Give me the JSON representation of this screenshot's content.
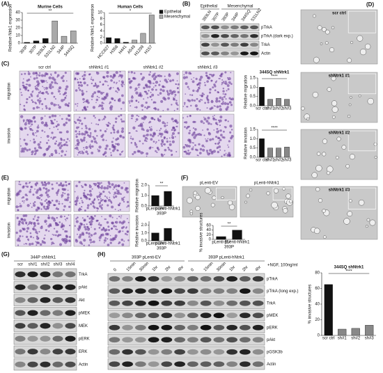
{
  "panel_labels": [
    "(A)",
    "(B)",
    "(C)",
    "(D)",
    "(E)",
    "(F)",
    "(G)",
    "(H)"
  ],
  "chart_data": [
    {
      "type": "bar",
      "title": "Murine Cells",
      "ylabel": "Relative Ntrk1 expression",
      "categories": [
        "393P",
        "307P",
        "393LN",
        "531LN2",
        "344P",
        "344SQ"
      ],
      "values": [
        1,
        3,
        6,
        29,
        9,
        16
      ],
      "colors": [
        "#111111",
        "#111111",
        "#111111",
        "#aaaaaa",
        "#aaaaaa",
        "#aaaaaa"
      ],
      "ylim": [
        0,
        40
      ],
      "yticks": [
        0,
        10,
        20,
        30,
        40
      ],
      "annotation": "**"
    },
    {
      "type": "bar",
      "title": "Human Cells",
      "ylabel": "Relative Ntrk1 expression",
      "categories": [
        "HCC827",
        "H358",
        "H441",
        "A549",
        "H1299",
        "H157"
      ],
      "series": [
        {
          "name": "Epithelial",
          "color": "#111111",
          "values": [
            1.8,
            1.5,
            0.3,
            null,
            null,
            null
          ]
        },
        {
          "name": "Mesenchymal",
          "color": "#aaaaaa",
          "values": [
            null,
            null,
            null,
            1.0,
            3.2,
            9.2
          ]
        }
      ],
      "ylim": [
        0,
        10
      ],
      "yticks": [
        0,
        2,
        4,
        6,
        8,
        10
      ],
      "legend": true,
      "annotation": "*"
    },
    {
      "type": "bar",
      "title": "344SQ shNtrk1",
      "ylabel": "Relative migration",
      "categories": [
        "scr ctrl",
        "sh#1",
        "sh#2",
        "sh#3"
      ],
      "values": [
        1.0,
        0.35,
        0.4,
        0.35
      ],
      "colors": [
        "#111111",
        "#888888",
        "#888888",
        "#888888"
      ],
      "ylim": [
        0,
        1.5
      ],
      "yticks": [
        {
          "value": 0,
          "label": "0.0"
        },
        {
          "value": 0.5,
          "label": "0.5"
        },
        {
          "value": 1,
          "label": "1.0"
        },
        {
          "value": 1.5,
          "label": "1.5"
        }
      ],
      "annotation": "****"
    },
    {
      "type": "bar",
      "ylabel": "Relative invasion",
      "categories": [
        "scr ctrl",
        "sh#1",
        "sh#2",
        "sh#3"
      ],
      "values": [
        1.0,
        0.5,
        0.5,
        0.55
      ],
      "colors": [
        "#111111",
        "#888888",
        "#888888",
        "#888888"
      ],
      "ylim": [
        0,
        1.5
      ],
      "yticks": [
        {
          "value": 0,
          "label": "0.0"
        },
        {
          "value": 0.5,
          "label": "0.5"
        },
        {
          "value": 1,
          "label": "1.0"
        },
        {
          "value": 1.5,
          "label": "1.5"
        }
      ],
      "annotation": "****"
    },
    {
      "type": "bar",
      "ylabel": "Relative migration",
      "xlabel": "393P",
      "categories": [
        "pLenti-EV",
        "pLenti-hNtrk1"
      ],
      "values": [
        1.0,
        1.4
      ],
      "color": "#111111",
      "ylim": [
        0,
        2
      ],
      "yticks": [
        {
          "value": 0,
          "label": "0.0"
        },
        {
          "value": 1,
          "label": "1.0"
        },
        {
          "value": 2,
          "label": "2.0"
        }
      ],
      "annotation": "**"
    },
    {
      "type": "bar",
      "ylabel": "Relative invasion",
      "xlabel": "393P",
      "categories": [
        "pLenti-EV",
        "pLenti-hNtrk1"
      ],
      "values": [
        1.0,
        1.6
      ],
      "color": "#111111",
      "ylim": [
        0,
        2.5
      ],
      "yticks": [
        {
          "value": 0,
          "label": "0.0"
        },
        {
          "value": 1,
          "label": "1.0"
        },
        {
          "value": 2,
          "label": "2.0"
        }
      ]
    },
    {
      "type": "bar",
      "ylabel": "% invasive structures",
      "xlabel": "393P",
      "categories": [
        "pLenti-EV",
        "pLenti-hNtrk1"
      ],
      "values": [
        12,
        40
      ],
      "color": "#111111",
      "ylim": [
        0,
        60
      ],
      "yticks": [
        0,
        20,
        40,
        60
      ],
      "annotation": "**"
    },
    {
      "type": "bar",
      "title": "344SQ shNtrk1",
      "ylabel": "% invasive structures",
      "categories": [
        "scr ctrl",
        "sh#1",
        "sh#2",
        "sh#3"
      ],
      "values": [
        65,
        8,
        9,
        13
      ],
      "colors": [
        "#111111",
        "#888888",
        "#888888",
        "#888888"
      ],
      "ylim": [
        0,
        80
      ],
      "yticks": [
        0,
        20,
        40,
        60,
        80
      ],
      "annotation": "****"
    }
  ],
  "panel_b": {
    "groups": [
      "Epithelial",
      "Mesenchymal"
    ],
    "lanes": [
      "393LN",
      "307P",
      "393P",
      "344P",
      "344SQ",
      "531LN2"
    ],
    "rows": [
      "pTrkA",
      "pTrkA (dark exp.)",
      "TrkA",
      "Actin"
    ]
  },
  "panel_c": {
    "columns": [
      "scr ctrl",
      "shNtrk1 #1",
      "shNtrk1 #2",
      "shNtrk1 #3"
    ],
    "rows": [
      "migration",
      "invasion"
    ]
  },
  "panel_d": {
    "images": [
      "scr ctrl",
      "shNtrk1 #1",
      "shNtrk1 #2",
      "shNtrk1 #3"
    ]
  },
  "panel_e": {
    "rows": [
      "migration",
      "invasion"
    ]
  },
  "panel_f": {
    "columns": [
      "pLenti-EV",
      "pLenti-hNtrk1"
    ]
  },
  "panel_g": {
    "title": "344P shNtrk1",
    "lanes": [
      "scr",
      "sh#1",
      "sh#2",
      "sh#3",
      "sh#4"
    ],
    "rows": [
      "TrkA",
      "pAkt",
      "Akt",
      "pMEK",
      "MEK",
      "pERK",
      "ERK",
      "Actin"
    ]
  },
  "panel_h": {
    "groups": [
      "393P pLenti-EV",
      "393P pLenti-hNtrk1"
    ],
    "treatment": "+NGF, 100ng/ml",
    "lanes": [
      "0",
      "15min",
      "30min",
      "1hr",
      "2hr",
      "4hr",
      "0",
      "15min",
      "30min",
      "1hr",
      "2hr",
      "4hr"
    ],
    "rows": [
      "pTrkA",
      "pTrkA (long exp.)",
      "TrkA",
      "pMEK",
      "pERK",
      "pAkt",
      "pGSK3b",
      "Actin"
    ]
  }
}
